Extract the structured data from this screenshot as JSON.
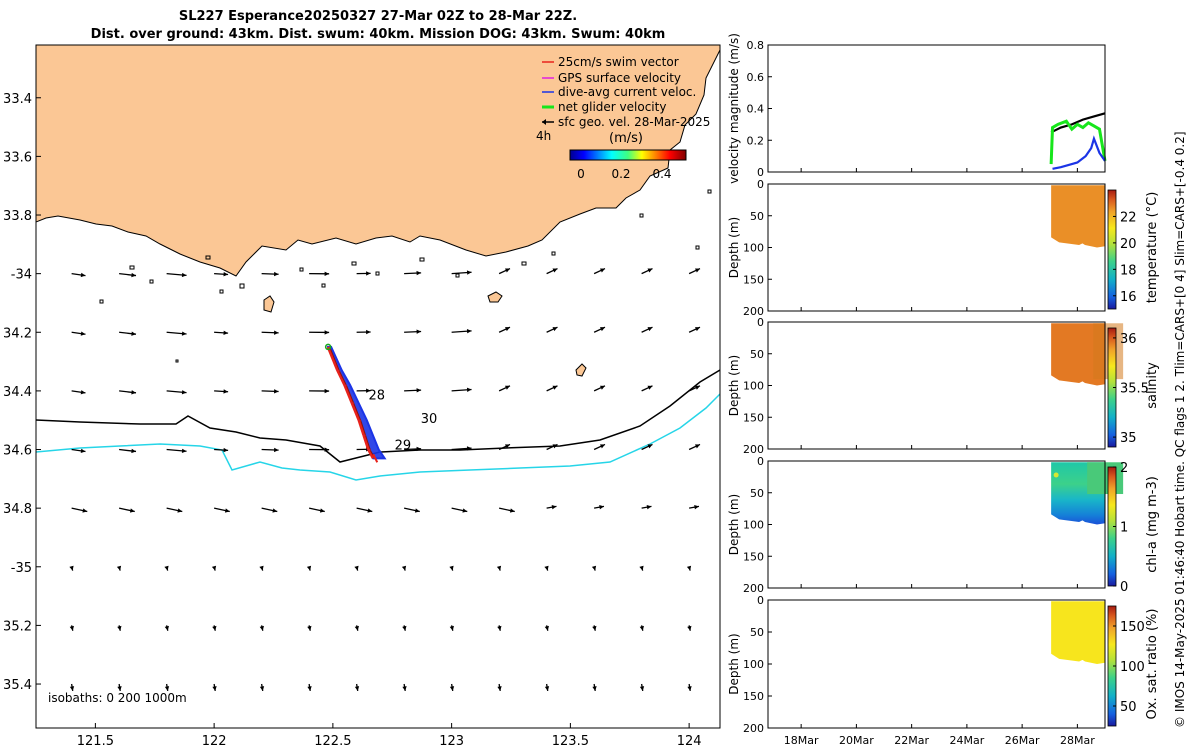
{
  "figure": {
    "title_line1": "SL227 Esperance20250327 27-Mar 02Z to 28-Mar 22Z.",
    "title_line2": "Dist. over ground: 43km. Dist. swum: 40km. Mission DOG: 43km. Swum: 40km",
    "side_note": "© IMOS 14-May-2025 01:46:40 Hobart time. QC flags 1  2. Tlim=CARS+[0 4] Slim=CARS+[-0.4 0.2]"
  },
  "colors": {
    "land": "#fbc795",
    "glider_track": "#e8221b",
    "dive_avg": "#1b34e6",
    "net_velocity": "#17e61b",
    "isobath_200": "#26d5e8",
    "contour": "#000000"
  },
  "chart_data": [
    {
      "id": "map",
      "type": "scatter",
      "title": "",
      "xlabel": "",
      "ylabel": "",
      "xlim": [
        121.25,
        124.13
      ],
      "ylim": [
        -35.55,
        -33.22
      ],
      "x_ticks": [
        121.5,
        122,
        122.5,
        123,
        123.5,
        124
      ],
      "x_tick_labels": [
        "121.5",
        "122",
        "122.5",
        "123",
        "123.5",
        "124"
      ],
      "y_ticks": [
        -33.4,
        -33.6,
        -33.8,
        -34,
        -34.2,
        -34.4,
        -34.6,
        -34.8,
        -35,
        -35.2,
        -35.4
      ],
      "y_tick_labels": [
        "33.4",
        "33.6",
        "33.8",
        "-34",
        "34.2",
        "34.4",
        "34.6",
        "34.8",
        "-35",
        "35.2",
        "35.4"
      ],
      "legend": [
        {
          "label": "25cm/s swim vector",
          "color": "#e8221b"
        },
        {
          "label": "GPS surface velocity",
          "color": "#e020e0"
        },
        {
          "label": "dive-avg current veloc.",
          "color": "#1b34e6"
        },
        {
          "label": "net glider velocity",
          "color": "#17e61b"
        },
        {
          "label": "sfc geo. vel. 28-Mar-2025",
          "color": "#000000"
        }
      ],
      "legend_note": "4h",
      "colorbar_label": "(m/s)",
      "colorbar_ticks": [
        "0",
        "0.2",
        "0.4"
      ],
      "track": {
        "x": [
          122.48,
          122.52,
          122.55,
          122.58,
          122.61,
          122.63,
          122.65,
          122.67
        ],
        "y": [
          -34.25,
          -34.33,
          -34.38,
          -34.44,
          -34.5,
          -34.55,
          -34.6,
          -34.63
        ]
      },
      "day_labels": [
        {
          "text": "28",
          "x": 122.65,
          "y": -34.43
        },
        {
          "text": "29",
          "x": 122.76,
          "y": -34.6
        },
        {
          "text": "30",
          "x": 122.87,
          "y": -34.51
        }
      ],
      "isobaths_label": "isobaths: 0   200  1000m"
    },
    {
      "id": "velocity",
      "type": "line",
      "ylabel": "velocity magnitude (m/s)",
      "ylim": [
        0,
        0.8
      ],
      "y_ticks": [
        "0",
        "0.2",
        "0.4",
        "0.6",
        "0.8"
      ],
      "series": [
        {
          "name": "sfc geo. vel.",
          "color": "#000000",
          "x": [
            27.05,
            27.4,
            27.8,
            28.2,
            28.6,
            29.0
          ],
          "y": [
            0.25,
            0.28,
            0.3,
            0.33,
            0.35,
            0.37
          ]
        },
        {
          "name": "net glider velocity",
          "color": "#17e61b",
          "x": [
            27.05,
            27.1,
            27.3,
            27.6,
            27.8,
            28.0,
            28.2,
            28.4,
            28.6,
            28.8,
            29.0
          ],
          "y": [
            0.05,
            0.28,
            0.3,
            0.32,
            0.27,
            0.3,
            0.28,
            0.31,
            0.29,
            0.27,
            0.07
          ]
        },
        {
          "name": "dive-avg current",
          "color": "#1b34e6",
          "x": [
            27.1,
            27.4,
            27.8,
            28.0,
            28.3,
            28.5,
            28.6,
            28.8,
            29.0
          ],
          "y": [
            0.02,
            0.03,
            0.05,
            0.06,
            0.1,
            0.15,
            0.21,
            0.12,
            0.07
          ]
        }
      ]
    },
    {
      "id": "temperature",
      "type": "heatmap",
      "ylabel": "Depth (m)",
      "ylim": [
        0,
        200
      ],
      "y_ticks": [
        "0",
        "50",
        "100",
        "150",
        "200"
      ],
      "colorbar_label": "temperature (°C)",
      "colorbar_ticks": [
        "22",
        "20",
        "18",
        "16"
      ],
      "value_range": [
        15,
        24
      ],
      "typical_value": 22.6
    },
    {
      "id": "salinity",
      "type": "heatmap",
      "ylabel": "Depth (m)",
      "ylim": [
        0,
        200
      ],
      "y_ticks": [
        "0",
        "50",
        "100",
        "150",
        "200"
      ],
      "colorbar_label": "salinity",
      "colorbar_ticks": [
        "36",
        "35.5",
        "35"
      ],
      "value_range": [
        34.9,
        36.1
      ],
      "typical_value": 35.95
    },
    {
      "id": "chla",
      "type": "heatmap",
      "ylabel": "Depth (m)",
      "ylim": [
        0,
        200
      ],
      "y_ticks": [
        "0",
        "50",
        "100",
        "150",
        "200"
      ],
      "colorbar_label": "chl-a (mg m-3)",
      "colorbar_ticks": [
        "2",
        "1",
        "0"
      ],
      "value_range": [
        0,
        2
      ],
      "typical_value": 1.0
    },
    {
      "id": "oxygen",
      "type": "heatmap",
      "ylabel": "Depth (m)",
      "ylim": [
        0,
        200
      ],
      "y_ticks": [
        "0",
        "50",
        "100",
        "150",
        "200"
      ],
      "colorbar_label": "Ox. sat. ratio (%)",
      "colorbar_ticks": [
        "150",
        "100",
        "50"
      ],
      "value_range": [
        25,
        175
      ],
      "typical_value": 128
    }
  ],
  "time_axis": {
    "range_days": [
      16.8,
      29.0
    ],
    "ticks": [
      18,
      20,
      22,
      24,
      26,
      28
    ],
    "tick_labels": [
      "18Mar",
      "20Mar",
      "22Mar",
      "24Mar",
      "26Mar",
      "28Mar"
    ],
    "data_start": 27.05
  }
}
